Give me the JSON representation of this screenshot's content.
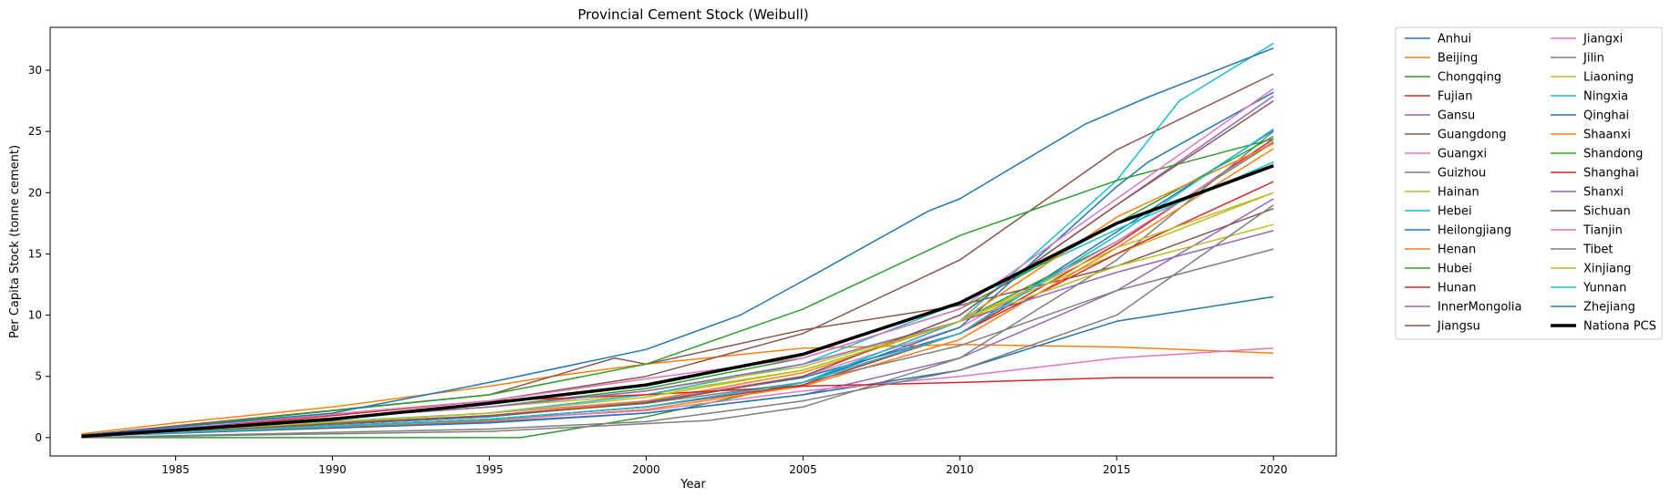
{
  "chart_data": {
    "type": "line",
    "title": "Provincial Cement Stock (Weibull)",
    "xlabel": "Year",
    "ylabel": "Per Capita Stock (tonne cement)",
    "xlim": [
      1981,
      2022
    ],
    "ylim": [
      -1.5,
      33.5
    ],
    "xticks": [
      1985,
      1990,
      1995,
      2000,
      2005,
      2010,
      2015,
      2020
    ],
    "yticks": [
      0,
      5,
      10,
      15,
      20,
      25,
      30
    ],
    "grid": false,
    "legend_placement": "outside-right",
    "legend_columns": 2,
    "series": [
      {
        "name": "Anhui",
        "color": "#1f77b4",
        "x": [
          1982,
          1995,
          2000,
          2005,
          2010,
          2015,
          2020
        ],
        "y": [
          0.1,
          1.7,
          2.9,
          4.9,
          8.5,
          16.8,
          25.1
        ]
      },
      {
        "name": "Beijing",
        "color": "#ff7f0e",
        "x": [
          1982,
          1985,
          1990,
          1995,
          1997,
          2000,
          2005,
          2010,
          2015,
          2020
        ],
        "y": [
          0.3,
          1.2,
          2.5,
          4.2,
          5.0,
          6.0,
          7.3,
          7.6,
          7.4,
          6.9
        ]
      },
      {
        "name": "Chongqing",
        "color": "#2ca02c",
        "x": [
          1982,
          1996,
          2000,
          2005,
          2010,
          2015,
          2020
        ],
        "y": [
          0.0,
          0.0,
          1.7,
          4.5,
          9.5,
          16.0,
          24.1
        ]
      },
      {
        "name": "Fujian",
        "color": "#d62728",
        "x": [
          1982,
          1995,
          2000,
          2005,
          2010,
          2015,
          2020
        ],
        "y": [
          0.1,
          1.5,
          2.5,
          4.3,
          8.5,
          15.8,
          24.4
        ]
      },
      {
        "name": "Gansu",
        "color": "#9467bd",
        "x": [
          1982,
          1995,
          2000,
          2005,
          2010,
          2015,
          2020
        ],
        "y": [
          0.1,
          1.3,
          2.0,
          3.5,
          6.5,
          12.0,
          19.5
        ]
      },
      {
        "name": "Guangdong",
        "color": "#8c564b",
        "x": [
          1982,
          1995,
          1999,
          2000,
          2005,
          2010,
          2015,
          2020
        ],
        "y": [
          0.2,
          3.5,
          6.5,
          6.0,
          8.8,
          10.8,
          14.0,
          18.7
        ]
      },
      {
        "name": "Guangxi",
        "color": "#e377c2",
        "x": [
          1982,
          1995,
          2000,
          2005,
          2010,
          2015,
          2020
        ],
        "y": [
          0.1,
          2.0,
          3.0,
          5.0,
          9.0,
          16.0,
          24.2
        ]
      },
      {
        "name": "Guizhou",
        "color": "#7f7f7f",
        "x": [
          1982,
          1995,
          2002,
          2005,
          2010,
          2015,
          2020
        ],
        "y": [
          0.0,
          0.5,
          1.4,
          2.5,
          6.5,
          14.5,
          25.0
        ]
      },
      {
        "name": "Hainan",
        "color": "#bcbd22",
        "x": [
          1982,
          1995,
          2000,
          2005,
          2010,
          2015,
          2020
        ],
        "y": [
          0.2,
          2.5,
          3.5,
          5.5,
          9.5,
          15.0,
          20.0
        ]
      },
      {
        "name": "Hebei",
        "color": "#17becf",
        "x": [
          1982,
          1995,
          2000,
          2005,
          2010,
          2015,
          2020
        ],
        "y": [
          0.2,
          2.0,
          3.5,
          6.0,
          11.0,
          17.0,
          22.5
        ]
      },
      {
        "name": "Heilongjiang",
        "color": "#1f77b4",
        "x": [
          1982,
          1995,
          2000,
          2005,
          2010,
          2015,
          2020
        ],
        "y": [
          0.1,
          1.2,
          2.0,
          3.5,
          5.5,
          9.5,
          11.5
        ]
      },
      {
        "name": "Henan",
        "color": "#ff7f0e",
        "x": [
          1982,
          1995,
          2000,
          2005,
          2010,
          2015,
          2020
        ],
        "y": [
          0.1,
          1.4,
          2.3,
          4.2,
          8.0,
          15.5,
          23.6
        ]
      },
      {
        "name": "Hubei",
        "color": "#2ca02c",
        "x": [
          1982,
          1995,
          2000,
          2005,
          2010,
          2015,
          2020
        ],
        "y": [
          0.2,
          2.5,
          4.0,
          6.5,
          10.5,
          17.5,
          24.6
        ]
      },
      {
        "name": "Hunan",
        "color": "#d62728",
        "x": [
          1982,
          1995,
          2000,
          2005,
          2010,
          2015,
          2020
        ],
        "y": [
          0.1,
          1.5,
          2.5,
          4.5,
          8.5,
          15.0,
          20.9
        ]
      },
      {
        "name": "InnerMongolia",
        "color": "#9467bd",
        "x": [
          1982,
          1995,
          2000,
          2005,
          2010,
          2015,
          2020
        ],
        "y": [
          0.2,
          1.8,
          2.8,
          5.0,
          10.0,
          19.0,
          27.9
        ]
      },
      {
        "name": "Jiangsu",
        "color": "#8c564b",
        "x": [
          1982,
          1995,
          2000,
          2005,
          2010,
          2015,
          2020
        ],
        "y": [
          0.2,
          3.0,
          5.0,
          8.5,
          14.5,
          23.5,
          29.7
        ]
      },
      {
        "name": "Jiangxi",
        "color": "#e377c2",
        "x": [
          1982,
          1995,
          2000,
          2005,
          2010,
          2015,
          2020
        ],
        "y": [
          0.1,
          1.5,
          2.2,
          3.8,
          5.0,
          6.5,
          7.3
        ]
      },
      {
        "name": "Jilin",
        "color": "#7f7f7f",
        "x": [
          1982,
          1995,
          2000,
          2005,
          2010,
          2015,
          2020
        ],
        "y": [
          0.1,
          1.8,
          2.8,
          4.5,
          7.5,
          12.0,
          15.4
        ]
      },
      {
        "name": "Liaoning",
        "color": "#bcbd22",
        "x": [
          1982,
          1995,
          2000,
          2005,
          2010,
          2015,
          2020
        ],
        "y": [
          0.2,
          2.5,
          3.8,
          5.8,
          9.5,
          14.0,
          17.4
        ]
      },
      {
        "name": "Ningxia",
        "color": "#17becf",
        "x": [
          1982,
          1995,
          2000,
          2005,
          2010,
          2015,
          2017,
          2020
        ],
        "y": [
          0.1,
          1.5,
          2.5,
          4.5,
          9.5,
          21.0,
          27.5,
          32.2
        ]
      },
      {
        "name": "Qinghai",
        "color": "#1f77b4",
        "x": [
          1982,
          1995,
          2000,
          2005,
          2010,
          2015,
          2016,
          2020
        ],
        "y": [
          0.1,
          1.5,
          2.5,
          4.5,
          9.0,
          20.5,
          22.5,
          28.2
        ]
      },
      {
        "name": "Shaanxi",
        "color": "#ff7f0e",
        "x": [
          1982,
          1995,
          2000,
          2005,
          2010,
          2015,
          2020
        ],
        "y": [
          0.1,
          1.8,
          3.0,
          5.3,
          9.5,
          18.0,
          24.0
        ]
      },
      {
        "name": "Shandong",
        "color": "#2ca02c",
        "x": [
          1982,
          1995,
          2000,
          2005,
          2010,
          2015,
          2020
        ],
        "y": [
          0.1,
          3.5,
          6.0,
          10.5,
          16.5,
          21.0,
          24.4
        ]
      },
      {
        "name": "Shanghai",
        "color": "#d62728",
        "x": [
          1982,
          1985,
          1990,
          1995,
          2000,
          2005,
          2010,
          2015,
          2020
        ],
        "y": [
          0.2,
          0.7,
          1.8,
          3.0,
          3.5,
          4.2,
          4.5,
          4.9,
          4.9
        ]
      },
      {
        "name": "Shanxi",
        "color": "#9467bd",
        "x": [
          1982,
          1995,
          2000,
          2005,
          2010,
          2015,
          2020
        ],
        "y": [
          0.2,
          2.5,
          3.8,
          6.0,
          9.5,
          13.5,
          16.9
        ]
      },
      {
        "name": "Sichuan",
        "color": "#8c564b",
        "x": [
          1982,
          1995,
          2000,
          2005,
          2010,
          2015,
          2020
        ],
        "y": [
          0.1,
          1.8,
          2.8,
          5.0,
          10.0,
          19.0,
          27.5
        ]
      },
      {
        "name": "Tianjin",
        "color": "#e377c2",
        "x": [
          1982,
          1995,
          2000,
          2005,
          2010,
          2015,
          2020
        ],
        "y": [
          0.2,
          3.0,
          4.8,
          6.5,
          10.5,
          19.5,
          28.5
        ]
      },
      {
        "name": "Tibet",
        "color": "#7f7f7f",
        "x": [
          1982,
          1995,
          2000,
          2005,
          2010,
          2015,
          2020
        ],
        "y": [
          0.0,
          0.7,
          1.3,
          3.0,
          5.5,
          10.0,
          19.0
        ]
      },
      {
        "name": "Xinjiang",
        "color": "#bcbd22",
        "x": [
          1982,
          1995,
          2000,
          2005,
          2010,
          2015,
          2020
        ],
        "y": [
          0.1,
          2.0,
          3.3,
          5.5,
          9.5,
          15.5,
          20.0
        ]
      },
      {
        "name": "Yunnan",
        "color": "#17becf",
        "x": [
          1982,
          1995,
          2000,
          2005,
          2010,
          2015,
          2020
        ],
        "y": [
          0.1,
          1.5,
          2.5,
          4.5,
          8.5,
          16.5,
          25.2
        ]
      },
      {
        "name": "Zhejiang",
        "color": "#1f77b4",
        "x": [
          1982,
          1990,
          1995,
          2000,
          2003,
          2005,
          2009,
          2010,
          2014,
          2016,
          2020
        ],
        "y": [
          0.2,
          2.0,
          4.5,
          7.2,
          10.0,
          12.8,
          18.5,
          19.5,
          25.6,
          27.8,
          31.8
        ]
      },
      {
        "name": "Nationa PCS",
        "color": "#000000",
        "width": 3.5,
        "x": [
          1982,
          1985,
          1990,
          1995,
          2000,
          2005,
          2010,
          2015,
          2020
        ],
        "y": [
          0.1,
          0.6,
          1.5,
          2.8,
          4.3,
          6.8,
          11.0,
          17.5,
          22.2
        ]
      }
    ]
  }
}
